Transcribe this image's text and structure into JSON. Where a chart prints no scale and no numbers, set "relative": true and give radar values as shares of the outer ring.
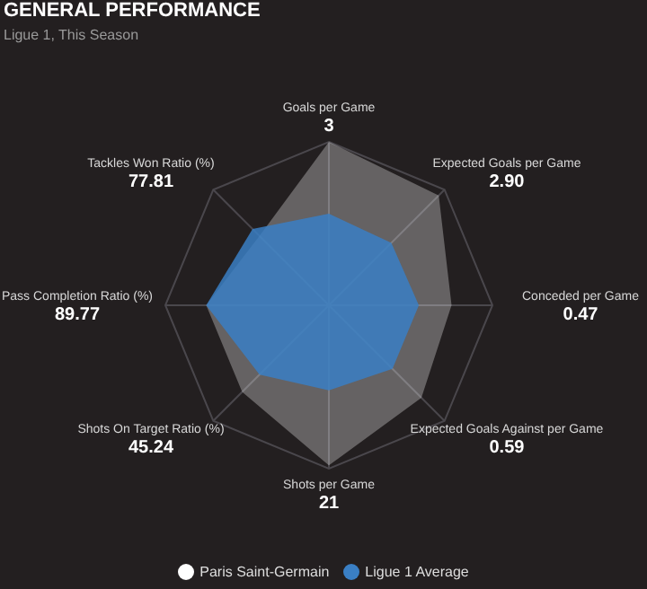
{
  "chart_data": {
    "type": "radar",
    "title": "GENERAL PERFORMANCE",
    "subtitle": "Ligue 1, This Season",
    "relative": true,
    "grid": true,
    "legend": "bottom",
    "annotations": [
      "3",
      "2.90",
      "0.47",
      "0.59",
      "21",
      "45.24",
      "89.77",
      "77.81"
    ],
    "categories": [
      "Goals per Game",
      "Expected Goals per Game",
      "Conceded per Game",
      "Expected Goals Against per Game",
      "Shots per Game",
      "Shots On Target Ratio (%)",
      "Pass Completion Ratio (%)",
      "Tackles Won Ratio (%)"
    ],
    "series": [
      {
        "name": "Paris Saint-Germain",
        "color": "#ffffff",
        "values": [
          1,
          0.95,
          0.75,
          0.8,
          0.98,
          0.75,
          0.75,
          0.6
        ]
      },
      {
        "name": "Ligue 1 Average",
        "color": "#3a7fc4",
        "values": [
          0.56,
          0.54,
          0.55,
          0.55,
          0.52,
          0.6,
          0.75,
          0.66
        ]
      }
    ]
  }
}
